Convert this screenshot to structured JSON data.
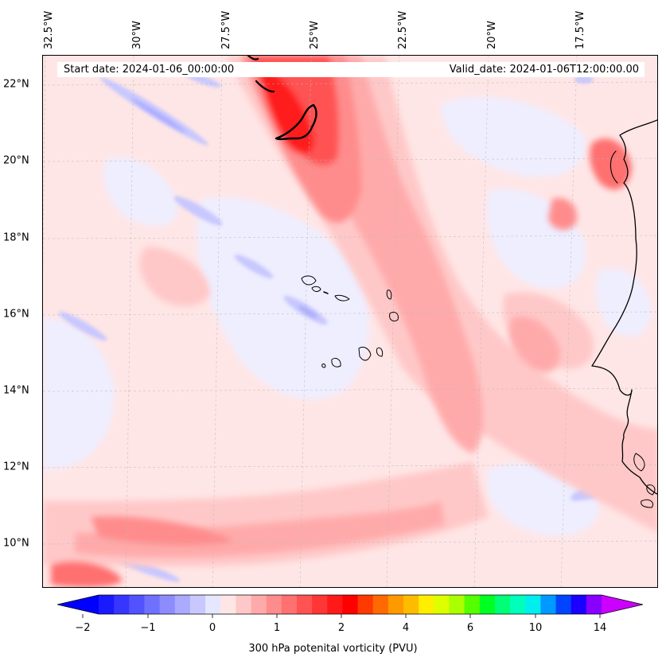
{
  "header": {
    "start_label": "Start date: 2024-01-06_00:00:00",
    "valid_label": "Valid_date: 2024-01-06T12:00:00.00"
  },
  "axes": {
    "longitudes": [
      "32.5°W",
      "30°W",
      "27.5°W",
      "25°W",
      "22.5°W",
      "20°W",
      "17.5°W"
    ],
    "latitudes": [
      "22°N",
      "20°N",
      "18°N",
      "16°N",
      "14°N",
      "12°N",
      "10°N"
    ]
  },
  "colorbar": {
    "label": "300 hPa potenital vorticity (PVU)",
    "ticks": [
      "−2",
      "−1",
      "0",
      "1",
      "2",
      "4",
      "6",
      "10",
      "14"
    ],
    "under_color": "#0000ff",
    "over_color": "#cc00ff",
    "colors": [
      "#1a1aff",
      "#3636ff",
      "#5252ff",
      "#7070ff",
      "#8c8cff",
      "#aaaaff",
      "#c8c8ff",
      "#e6e6ff",
      "#ffe6e6",
      "#ffc8c8",
      "#ffaaaa",
      "#ff8c8c",
      "#ff7070",
      "#ff5252",
      "#ff3636",
      "#ff1a1a",
      "#ff0000",
      "#ff3a00",
      "#ff6a00",
      "#ff9900",
      "#ffbb00",
      "#ffee00",
      "#ddff00",
      "#aaff00",
      "#55ff00",
      "#00ff22",
      "#00ff77",
      "#00ffbb",
      "#00eeee",
      "#0099ff",
      "#0044ff",
      "#1a00ff",
      "#8800ff"
    ]
  }
}
